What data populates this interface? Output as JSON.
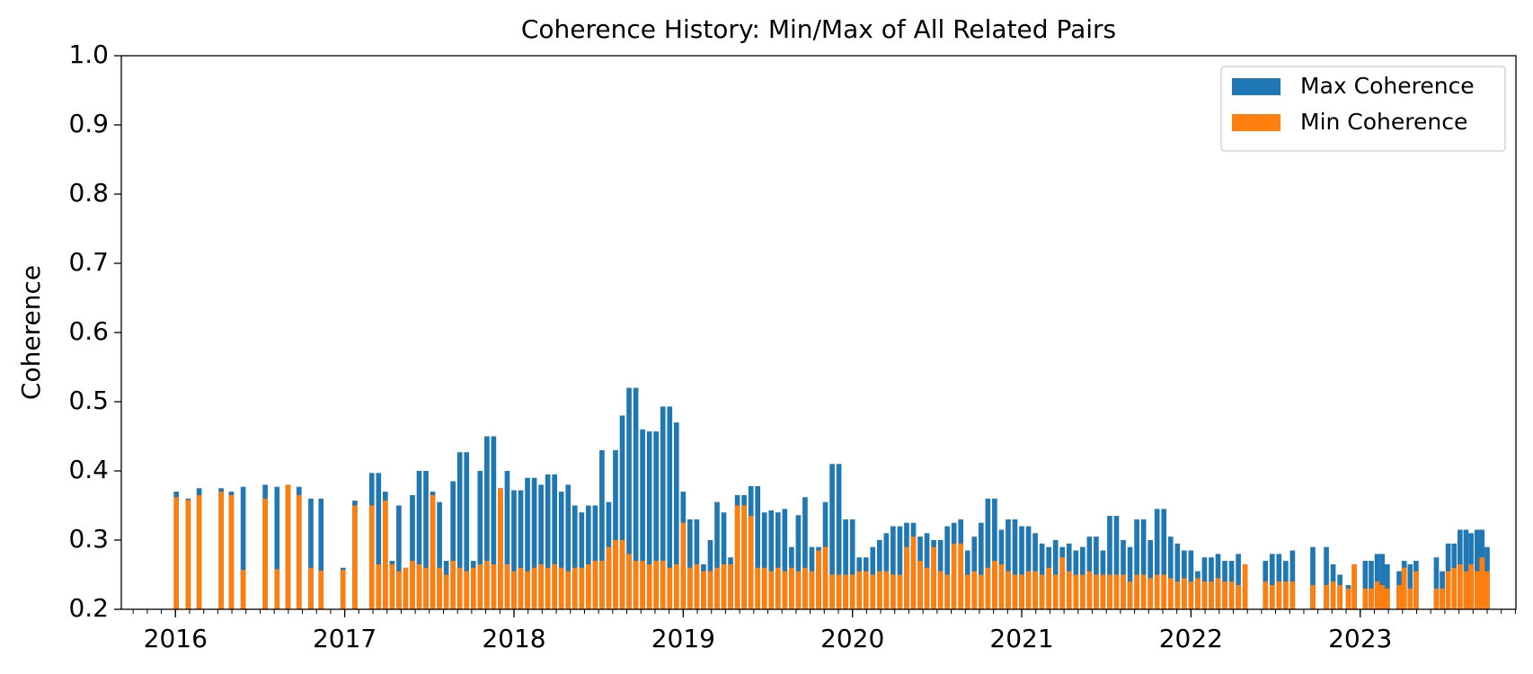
{
  "chart_data": {
    "type": "bar",
    "title": "Coherence History: Min/Max of All Related Pairs",
    "y_label": "Coherence",
    "x": [
      2016.005,
      2016.075,
      2016.14,
      2016.27,
      2016.33,
      2016.4,
      2016.53,
      2016.6,
      2016.665,
      2016.73,
      2016.8,
      2016.86,
      2016.99,
      2017.06,
      2017.16,
      2017.2,
      2017.24,
      2017.28,
      2017.32,
      2017.36,
      2017.4,
      2017.44,
      2017.48,
      2017.52,
      2017.56,
      2017.6,
      2017.64,
      2017.68,
      2017.72,
      2017.76,
      2017.8,
      2017.84,
      2017.88,
      2017.92,
      2017.96,
      2018.0,
      2018.04,
      2018.08,
      2018.12,
      2018.16,
      2018.2,
      2018.24,
      2018.28,
      2018.32,
      2018.36,
      2018.4,
      2018.44,
      2018.48,
      2018.52,
      2018.56,
      2018.6,
      2018.64,
      2018.68,
      2018.72,
      2018.76,
      2018.8,
      2018.84,
      2018.88,
      2018.92,
      2018.96,
      2019.0,
      2019.04,
      2019.08,
      2019.12,
      2019.16,
      2019.2,
      2019.24,
      2019.28,
      2019.32,
      2019.36,
      2019.4,
      2019.44,
      2019.48,
      2019.52,
      2019.56,
      2019.6,
      2019.64,
      2019.68,
      2019.72,
      2019.76,
      2019.8,
      2019.84,
      2019.88,
      2019.92,
      2019.96,
      2020.0,
      2020.04,
      2020.08,
      2020.12,
      2020.16,
      2020.2,
      2020.24,
      2020.28,
      2020.32,
      2020.36,
      2020.4,
      2020.44,
      2020.48,
      2020.52,
      2020.56,
      2020.6,
      2020.64,
      2020.68,
      2020.72,
      2020.76,
      2020.8,
      2020.84,
      2020.88,
      2020.92,
      2020.96,
      2021.0,
      2021.04,
      2021.08,
      2021.12,
      2021.16,
      2021.2,
      2021.24,
      2021.28,
      2021.32,
      2021.36,
      2021.4,
      2021.44,
      2021.48,
      2021.52,
      2021.56,
      2021.6,
      2021.64,
      2021.68,
      2021.72,
      2021.76,
      2021.8,
      2021.84,
      2021.88,
      2021.92,
      2021.96,
      2022.0,
      2022.04,
      2022.08,
      2022.12,
      2022.16,
      2022.2,
      2022.24,
      2022.28,
      2022.32,
      2022.44,
      2022.48,
      2022.52,
      2022.56,
      2022.6,
      2022.72,
      2022.8,
      2022.84,
      2022.88,
      2022.93,
      2022.965,
      2023.03,
      2023.065,
      2023.1,
      2023.13,
      2023.16,
      2023.23,
      2023.26,
      2023.295,
      2023.33,
      2023.45,
      2023.485,
      2023.52,
      2023.555,
      2023.59,
      2023.625,
      2023.655,
      2023.69,
      2023.72,
      2023.75
    ],
    "series": [
      {
        "name": "Max Coherence",
        "color": "#1f77b4",
        "values": [
          0.37,
          0.36,
          0.375,
          0.375,
          0.37,
          0.377,
          0.38,
          0.377,
          0.38,
          0.377,
          0.36,
          0.36,
          0.26,
          0.357,
          0.397,
          0.397,
          0.37,
          0.27,
          0.35,
          0.26,
          0.365,
          0.4,
          0.4,
          0.37,
          0.355,
          0.27,
          0.385,
          0.427,
          0.427,
          0.27,
          0.4,
          0.45,
          0.45,
          0.375,
          0.4,
          0.372,
          0.372,
          0.39,
          0.39,
          0.38,
          0.395,
          0.395,
          0.37,
          0.38,
          0.35,
          0.34,
          0.35,
          0.35,
          0.43,
          0.355,
          0.43,
          0.48,
          0.52,
          0.52,
          0.46,
          0.457,
          0.457,
          0.493,
          0.493,
          0.47,
          0.37,
          0.33,
          0.33,
          0.265,
          0.3,
          0.355,
          0.34,
          0.275,
          0.365,
          0.365,
          0.378,
          0.378,
          0.34,
          0.343,
          0.34,
          0.345,
          0.29,
          0.336,
          0.362,
          0.29,
          0.29,
          0.355,
          0.41,
          0.41,
          0.33,
          0.33,
          0.275,
          0.275,
          0.29,
          0.3,
          0.31,
          0.32,
          0.32,
          0.325,
          0.325,
          0.305,
          0.31,
          0.3,
          0.3,
          0.32,
          0.325,
          0.33,
          0.285,
          0.305,
          0.325,
          0.36,
          0.36,
          0.315,
          0.33,
          0.33,
          0.32,
          0.32,
          0.31,
          0.295,
          0.29,
          0.3,
          0.29,
          0.295,
          0.285,
          0.29,
          0.305,
          0.305,
          0.285,
          0.335,
          0.335,
          0.3,
          0.29,
          0.33,
          0.33,
          0.3,
          0.345,
          0.345,
          0.305,
          0.295,
          0.285,
          0.285,
          0.255,
          0.275,
          0.275,
          0.28,
          0.27,
          0.27,
          0.28,
          0.265,
          0.27,
          0.28,
          0.28,
          0.27,
          0.285,
          0.29,
          0.29,
          0.265,
          0.25,
          0.235,
          0.265,
          0.27,
          0.27,
          0.28,
          0.28,
          0.265,
          0.255,
          0.27,
          0.265,
          0.27,
          0.275,
          0.255,
          0.295,
          0.295,
          0.315,
          0.315,
          0.31,
          0.315,
          0.315,
          0.29
        ]
      },
      {
        "name": "Min Coherence",
        "color": "#ff7f0e",
        "values": [
          0.362,
          0.358,
          0.365,
          0.37,
          0.365,
          0.257,
          0.36,
          0.258,
          0.38,
          0.365,
          0.26,
          0.256,
          0.257,
          0.35,
          0.35,
          0.265,
          0.357,
          0.265,
          0.255,
          0.26,
          0.27,
          0.265,
          0.26,
          0.365,
          0.26,
          0.25,
          0.27,
          0.26,
          0.255,
          0.26,
          0.265,
          0.27,
          0.265,
          0.375,
          0.265,
          0.255,
          0.26,
          0.255,
          0.26,
          0.265,
          0.26,
          0.265,
          0.26,
          0.255,
          0.26,
          0.26,
          0.265,
          0.27,
          0.27,
          0.29,
          0.3,
          0.3,
          0.28,
          0.27,
          0.27,
          0.265,
          0.27,
          0.27,
          0.26,
          0.265,
          0.325,
          0.26,
          0.265,
          0.255,
          0.255,
          0.26,
          0.265,
          0.265,
          0.35,
          0.35,
          0.335,
          0.26,
          0.26,
          0.255,
          0.26,
          0.255,
          0.26,
          0.255,
          0.26,
          0.255,
          0.285,
          0.29,
          0.25,
          0.25,
          0.25,
          0.25,
          0.255,
          0.255,
          0.25,
          0.255,
          0.255,
          0.25,
          0.25,
          0.29,
          0.305,
          0.27,
          0.26,
          0.29,
          0.255,
          0.25,
          0.295,
          0.295,
          0.25,
          0.255,
          0.25,
          0.26,
          0.27,
          0.265,
          0.255,
          0.25,
          0.25,
          0.255,
          0.255,
          0.25,
          0.26,
          0.25,
          0.275,
          0.255,
          0.25,
          0.25,
          0.255,
          0.25,
          0.25,
          0.25,
          0.25,
          0.25,
          0.24,
          0.25,
          0.25,
          0.245,
          0.25,
          0.25,
          0.245,
          0.24,
          0.245,
          0.24,
          0.245,
          0.24,
          0.24,
          0.245,
          0.24,
          0.24,
          0.235,
          0.265,
          0.24,
          0.235,
          0.24,
          0.24,
          0.24,
          0.235,
          0.235,
          0.24,
          0.235,
          0.23,
          0.265,
          0.23,
          0.23,
          0.24,
          0.235,
          0.23,
          0.235,
          0.26,
          0.23,
          0.255,
          0.23,
          0.23,
          0.255,
          0.26,
          0.265,
          0.255,
          0.265,
          0.255,
          0.275,
          0.255
        ]
      }
    ],
    "xlim": [
      2015.68,
      2023.92
    ],
    "xticks": [
      2016,
      2017,
      2018,
      2019,
      2020,
      2021,
      2022,
      2023
    ],
    "ylim": [
      0.2,
      1.0
    ],
    "yticks": [
      0.2,
      0.3,
      0.4,
      0.5,
      0.6,
      0.7,
      0.8,
      0.9,
      {
        "value": 1.0,
        "label": "1.0"
      }
    ],
    "legend": "upper right",
    "grid": false
  }
}
